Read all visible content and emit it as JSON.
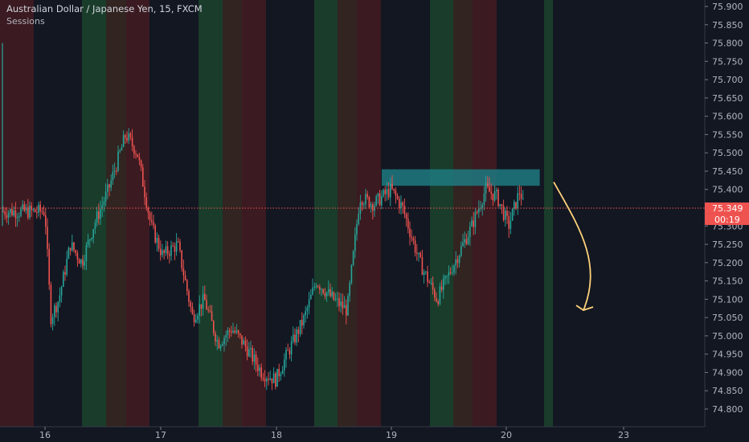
{
  "header": {
    "symbol_title": "Australian Dollar / Japanese Yen, 15, FXCM",
    "indicator": "Sessions"
  },
  "price_scale": {
    "ticks": [
      "75.900",
      "75.850",
      "75.800",
      "75.750",
      "75.700",
      "75.650",
      "75.600",
      "75.550",
      "75.500",
      "75.450",
      "75.400",
      "75.350",
      "75.300",
      "75.250",
      "75.200",
      "75.150",
      "75.100",
      "75.050",
      "75.000",
      "74.950",
      "74.900",
      "74.850",
      "74.800"
    ],
    "last_price_label": "75.349",
    "countdown_label": "00:19"
  },
  "time_scale": {
    "ticks": [
      "16",
      "17",
      "18",
      "19",
      "20",
      "23"
    ]
  },
  "colors": {
    "background": "#131722",
    "up": "#26a69a",
    "down": "#ef5350",
    "session_green": "#1d4a2f",
    "session_red": "#4a1c22",
    "session_brown": "#3d2a22",
    "zone": "#1f7a80",
    "arrow": "#ffd27a",
    "last_price": "#ef5350",
    "axis_text": "#b2b5be"
  },
  "chart_data": {
    "type": "candlestick",
    "title": "Australian Dollar / Japanese Yen, 15, FXCM",
    "x_label": "",
    "y_label": "",
    "y_range": [
      74.78,
      75.92
    ],
    "x_day_ticks": [
      "16",
      "17",
      "18",
      "19",
      "20",
      "23"
    ],
    "last_price": 75.349,
    "price_path": [
      [
        0,
        75.34
      ],
      [
        0.05,
        75.05
      ],
      [
        0.12,
        75.1
      ],
      [
        0.22,
        75.25
      ],
      [
        0.32,
        75.2
      ],
      [
        0.42,
        75.3
      ],
      [
        0.55,
        75.4
      ],
      [
        0.7,
        75.55
      ],
      [
        0.8,
        75.5
      ],
      [
        0.92,
        75.3
      ],
      [
        1.02,
        75.22
      ],
      [
        1.15,
        75.25
      ],
      [
        1.28,
        75.05
      ],
      [
        1.38,
        75.1
      ],
      [
        1.5,
        74.98
      ],
      [
        1.62,
        75.02
      ],
      [
        1.72,
        74.98
      ],
      [
        1.88,
        74.9
      ],
      [
        2.0,
        74.88
      ],
      [
        2.1,
        74.95
      ],
      [
        2.25,
        75.05
      ],
      [
        2.35,
        75.15
      ],
      [
        2.5,
        75.1
      ],
      [
        2.62,
        75.07
      ],
      [
        2.73,
        75.38
      ],
      [
        2.85,
        75.36
      ],
      [
        3.0,
        75.4
      ],
      [
        3.1,
        75.35
      ],
      [
        3.25,
        75.2
      ],
      [
        3.4,
        75.1
      ],
      [
        3.55,
        75.2
      ],
      [
        3.7,
        75.3
      ],
      [
        3.82,
        75.4
      ],
      [
        3.92,
        75.38
      ],
      [
        4.02,
        75.3
      ],
      [
        4.12,
        75.4
      ],
      [
        4.15,
        75.349
      ]
    ],
    "annotations": [
      {
        "type": "resistance_zone",
        "price_top": 75.455,
        "price_bottom": 75.41,
        "day_start": 2.92,
        "day_end": 4.29
      },
      {
        "type": "curved_arrow",
        "direction": "down",
        "price_start": 75.42,
        "price_end": 75.07
      }
    ],
    "sessions_note": "alternating colored vertical session backgrounds"
  }
}
